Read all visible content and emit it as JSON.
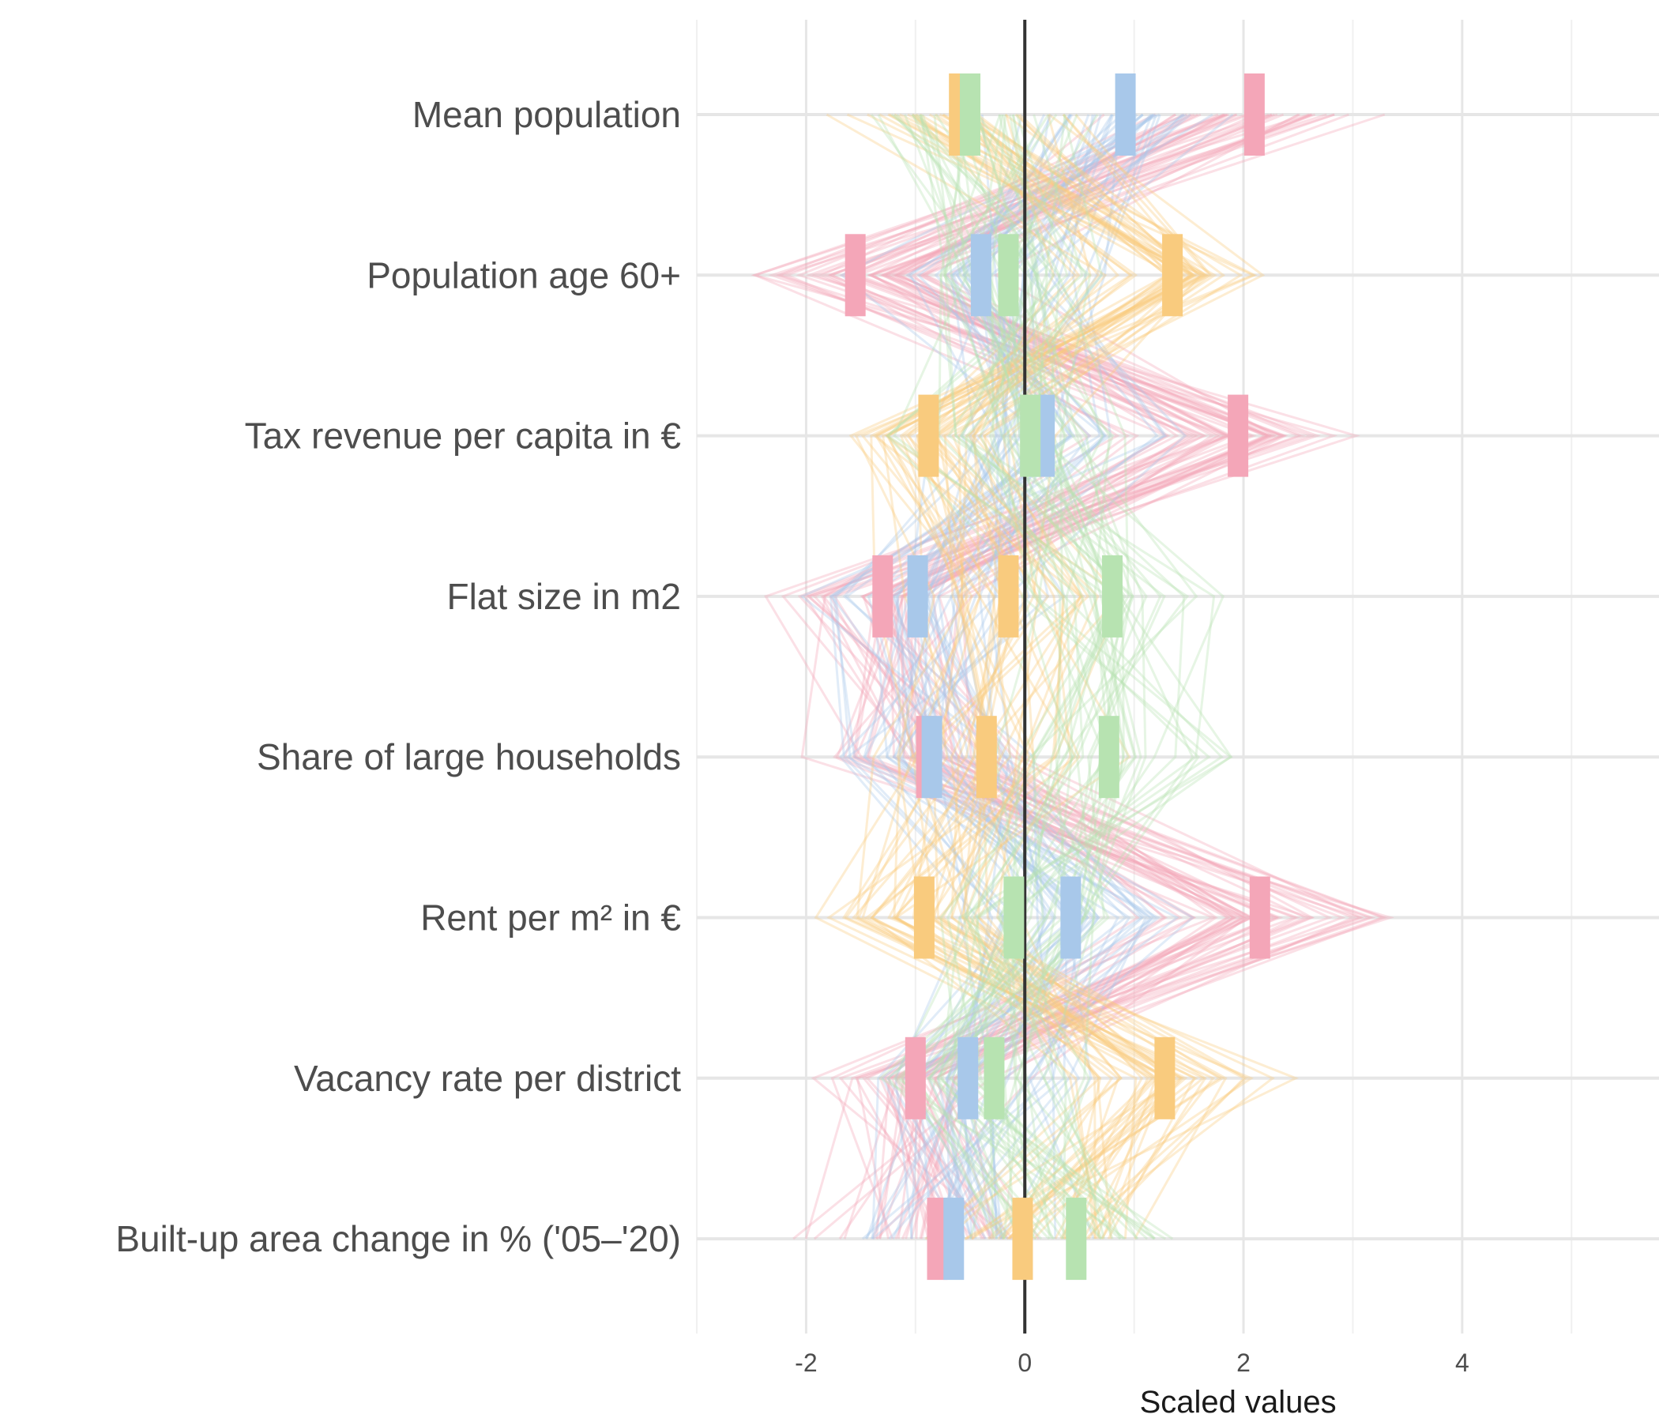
{
  "chart_data": {
    "type": "line",
    "title": "",
    "xlabel": "Scaled values",
    "ylabel": "",
    "xlim": [
      -3,
      5.8
    ],
    "x_ticks": [
      "-2",
      "0",
      "2",
      "4"
    ],
    "x_tick_values": [
      -2,
      0,
      2,
      4
    ],
    "x_minor_gridlines": [
      -3,
      -1,
      1,
      3,
      5
    ],
    "categories": [
      "Mean population",
      "Population age 60+",
      "Tax revenue per capita in €",
      "Flat size in m2",
      "Share of large households",
      "Rent per m² in €",
      "Vacancy rate per district",
      "Built-up area change in % ('05–'20)"
    ],
    "reference_line_x": 0,
    "grid": true,
    "legend": "none",
    "series": [
      {
        "color": "#f4a6b8",
        "mean_values": [
          2.1,
          -1.55,
          1.95,
          -1.3,
          -0.9,
          2.15,
          -1.0,
          -0.8
        ]
      },
      {
        "color": "#a8c8ea",
        "mean_values": [
          0.92,
          -0.4,
          0.18,
          -0.98,
          -0.85,
          0.42,
          -0.52,
          -0.65
        ]
      },
      {
        "color": "#f9cb7e",
        "mean_values": [
          -0.6,
          1.35,
          -0.88,
          -0.15,
          -0.35,
          -0.92,
          1.28,
          -0.02
        ]
      },
      {
        "color": "#b7e3b1",
        "mean_values": [
          -0.5,
          -0.15,
          0.05,
          0.8,
          0.77,
          -0.1,
          -0.28,
          0.47
        ]
      }
    ],
    "district_lines_per_cluster": 40,
    "district_lines_note": ""
  }
}
